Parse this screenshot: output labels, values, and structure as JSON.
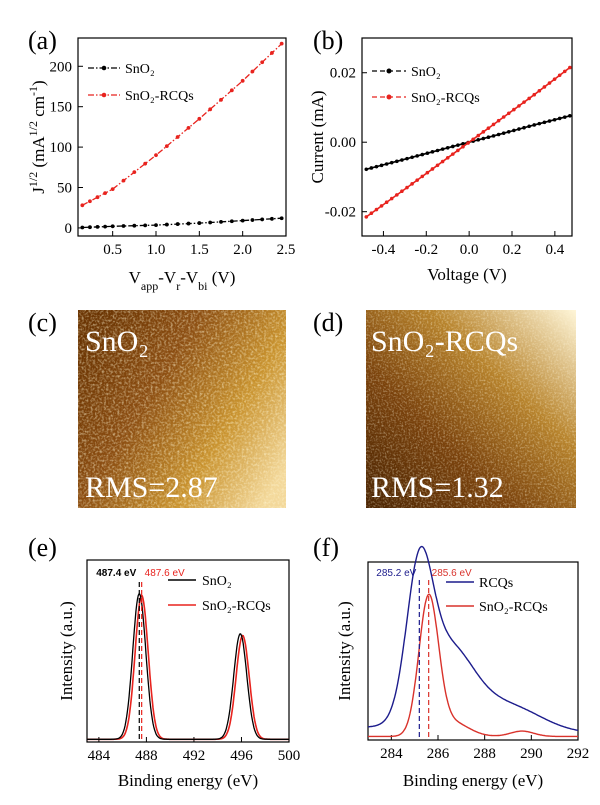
{
  "panels": {
    "a": {
      "label": "(a)"
    },
    "b": {
      "label": "(b)"
    },
    "c": {
      "label": "(c)"
    },
    "d": {
      "label": "(d)"
    },
    "e": {
      "label": "(e)"
    },
    "f": {
      "label": "(f)"
    }
  },
  "afm": {
    "c": {
      "name": "SnO₂",
      "rms": "RMS=2.87"
    },
    "d": {
      "name": "SnO₂-RCQs",
      "rms": "RMS=1.32"
    }
  },
  "colors": {
    "black": "#000000",
    "red": "#e8231e",
    "blue": "#1c1c8c",
    "vred": "#d9322b"
  },
  "chart_data": [
    {
      "id": "a",
      "type": "line",
      "xlabel": "Vapp-Vr-Vbi (V)",
      "ylabel": "J1/2 (mA1/2 cm-1)",
      "xlim": [
        0.1,
        2.5
      ],
      "ylim": [
        -10,
        235
      ],
      "xticks": [
        "0.5",
        "1.0",
        "1.5",
        "2.0",
        "2.5"
      ],
      "yticks": [
        "0",
        "50",
        "100",
        "150",
        "200"
      ],
      "series": [
        {
          "name": "SnO₂",
          "color": "#000000",
          "x": [
            0.15,
            0.5,
            1.0,
            1.5,
            2.0,
            2.45
          ],
          "y": [
            0.5,
            2.0,
            3.5,
            6.0,
            9.0,
            12.0
          ]
        },
        {
          "name": "SnO₂-RCQs",
          "color": "#e8231e",
          "x": [
            0.15,
            0.5,
            1.0,
            1.5,
            2.0,
            2.45
          ],
          "y": [
            28,
            48,
            90,
            135,
            182,
            228
          ]
        }
      ]
    },
    {
      "id": "b",
      "type": "line",
      "xlabel": "Voltage (V)",
      "ylabel": "Current (mA)",
      "xlim": [
        -0.5,
        0.48
      ],
      "ylim": [
        -0.027,
        0.03
      ],
      "xticks": [
        "-0.4",
        "-0.2",
        "0.0",
        "0.2",
        "0.4"
      ],
      "yticks": [
        "-0.02",
        "0.00",
        "0.02"
      ],
      "series": [
        {
          "name": "SnO₂",
          "color": "#000000",
          "x": [
            -0.48,
            -0.3,
            -0.1,
            0.0,
            0.1,
            0.3,
            0.47
          ],
          "y": [
            -0.0078,
            -0.0049,
            -0.0016,
            0.0,
            0.0016,
            0.0049,
            0.0076
          ]
        },
        {
          "name": "SnO₂-RCQs",
          "color": "#e8231e",
          "x": [
            -0.48,
            -0.3,
            -0.1,
            0.0,
            0.1,
            0.3,
            0.47
          ],
          "y": [
            -0.0215,
            -0.0135,
            -0.0045,
            0.0,
            0.0045,
            0.0135,
            0.0215
          ]
        }
      ]
    },
    {
      "id": "e",
      "type": "line",
      "xlabel": "Binding energy (eV)",
      "ylabel": "Intensity (a.u.)",
      "xlim": [
        483,
        500
      ],
      "xticks": [
        "484",
        "488",
        "492",
        "496",
        "500"
      ],
      "series": [
        {
          "name": "SnO₂",
          "color": "#000000"
        },
        {
          "name": "SnO₂-RCQs",
          "color": "#e8231e"
        }
      ],
      "annotations": [
        {
          "text": "487.4 eV",
          "x": 487.4,
          "color": "#000000"
        },
        {
          "text": "487.6 eV",
          "x": 487.6,
          "color": "#e8231e"
        }
      ]
    },
    {
      "id": "f",
      "type": "line",
      "xlabel": "Binding energy (eV)",
      "ylabel": "Intensity (a.u.)",
      "xlim": [
        283,
        292
      ],
      "xticks": [
        "284",
        "286",
        "288",
        "290",
        "292"
      ],
      "series": [
        {
          "name": "RCQs",
          "color": "#1c1c8c"
        },
        {
          "name": "SnO₂-RCQs",
          "color": "#d9322b"
        }
      ],
      "annotations": [
        {
          "text": "285.2 eV",
          "x": 285.2,
          "color": "#1c1c8c"
        },
        {
          "text": "285.6 eV",
          "x": 285.6,
          "color": "#d9322b"
        }
      ]
    }
  ]
}
